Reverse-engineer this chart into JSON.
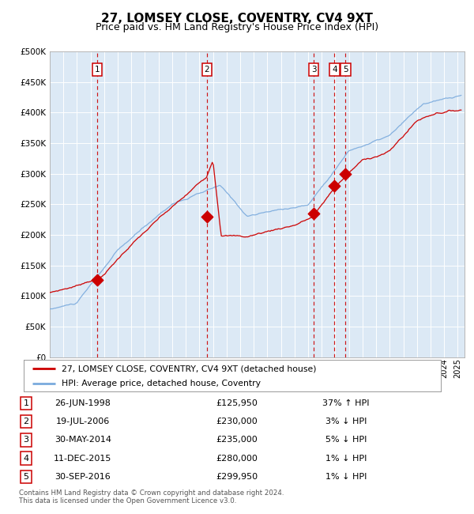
{
  "title": "27, LOMSEY CLOSE, COVENTRY, CV4 9XT",
  "subtitle": "Price paid vs. HM Land Registry's House Price Index (HPI)",
  "ylim": [
    0,
    500000
  ],
  "yticks": [
    0,
    50000,
    100000,
    150000,
    200000,
    250000,
    300000,
    350000,
    400000,
    450000,
    500000
  ],
  "ytick_labels": [
    "£0",
    "£50K",
    "£100K",
    "£150K",
    "£200K",
    "£250K",
    "£300K",
    "£350K",
    "£400K",
    "£450K",
    "£500K"
  ],
  "xlim_start": 1995.0,
  "xlim_end": 2025.5,
  "plot_bg_color": "#dce9f5",
  "grid_color": "#ffffff",
  "title_fontsize": 11,
  "subtitle_fontsize": 9,
  "sales": [
    {
      "label": "1",
      "year": 1998.49,
      "price": 125950
    },
    {
      "label": "2",
      "year": 2006.55,
      "price": 230000
    },
    {
      "label": "3",
      "year": 2014.41,
      "price": 235000
    },
    {
      "label": "4",
      "year": 2015.94,
      "price": 280000
    },
    {
      "label": "5",
      "year": 2016.75,
      "price": 299950
    }
  ],
  "legend_line1": "27, LOMSEY CLOSE, COVENTRY, CV4 9XT (detached house)",
  "legend_line2": "HPI: Average price, detached house, Coventry",
  "table_rows": [
    {
      "num": "1",
      "date": "26-JUN-1998",
      "price": "£125,950",
      "hpi": "37% ↑ HPI"
    },
    {
      "num": "2",
      "date": "19-JUL-2006",
      "price": "£230,000",
      "hpi": "3% ↓ HPI"
    },
    {
      "num": "3",
      "date": "30-MAY-2014",
      "price": "£235,000",
      "hpi": "5% ↓ HPI"
    },
    {
      "num": "4",
      "date": "11-DEC-2015",
      "price": "£280,000",
      "hpi": "1% ↓ HPI"
    },
    {
      "num": "5",
      "date": "30-SEP-2016",
      "price": "£299,950",
      "hpi": "1% ↓ HPI"
    }
  ],
  "footnote": "Contains HM Land Registry data © Crown copyright and database right 2024.\nThis data is licensed under the Open Government Licence v3.0.",
  "red_line_color": "#cc0000",
  "blue_line_color": "#7aaadd",
  "dot_color": "#cc0000",
  "vline_color": "#cc0000"
}
